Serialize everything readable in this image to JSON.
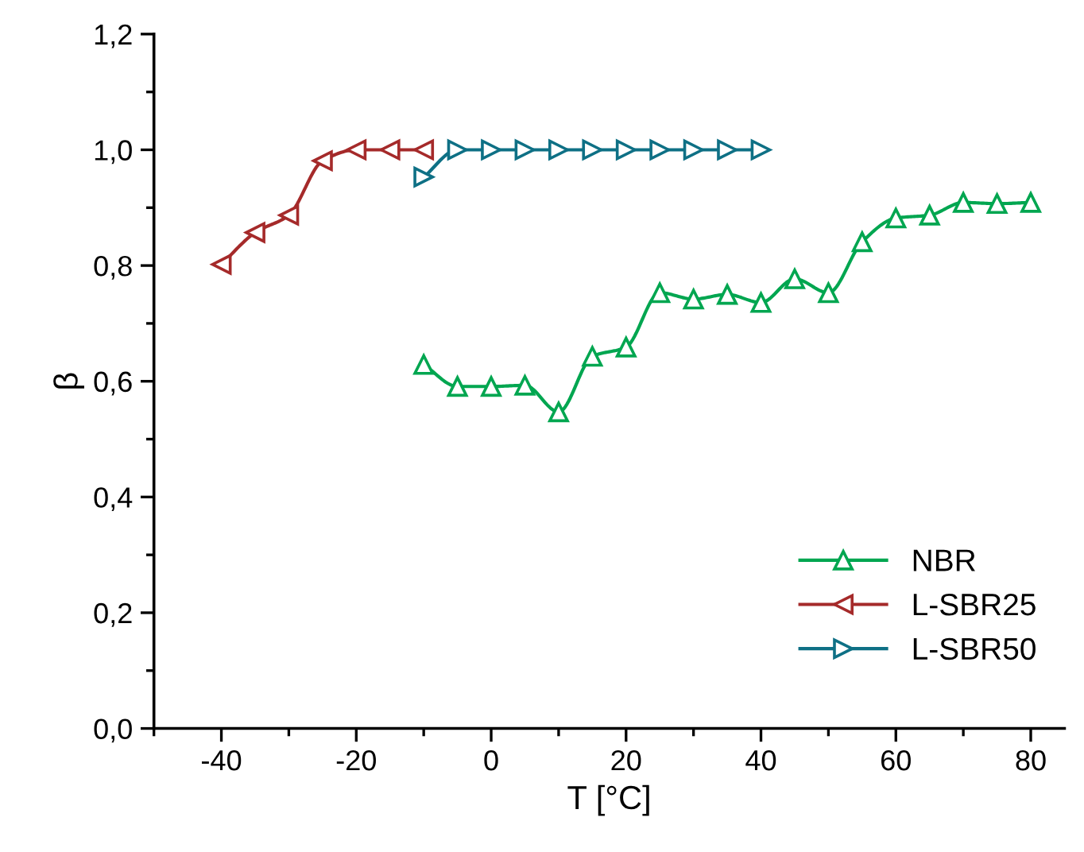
{
  "chart_data": {
    "type": "line",
    "xlabel": "T [°C]",
    "ylabel": "β",
    "marker": "triangle",
    "legend": "bottom right",
    "grid": false,
    "xlim": [
      -50,
      85
    ],
    "xticks": [
      -40,
      -20,
      0,
      20,
      40,
      60,
      80
    ],
    "ylim": [
      0,
      1.2
    ],
    "yticks": [
      {
        "value": 0,
        "label": "0,0"
      },
      {
        "value": 0.2,
        "label": "0,2"
      },
      {
        "value": 0.4,
        "label": "0,4"
      },
      {
        "value": 0.6,
        "label": "0,6"
      },
      {
        "value": 0.8,
        "label": "0,8"
      },
      {
        "value": 1.0,
        "label": "1,0"
      },
      {
        "value": 1.2,
        "label": "1,2"
      }
    ],
    "series": [
      {
        "name": "NBR",
        "color": "#00a650",
        "x": [
          -10,
          -5,
          0,
          5,
          10,
          15,
          20,
          25,
          30,
          35,
          40,
          45,
          50,
          55,
          60,
          65,
          70,
          75,
          80
        ],
        "values": [
          0.629,
          0.591,
          0.591,
          0.593,
          0.547,
          0.643,
          0.659,
          0.753,
          0.742,
          0.75,
          0.736,
          0.777,
          0.753,
          0.841,
          0.882,
          0.887,
          0.909,
          0.907,
          0.909
        ]
      },
      {
        "name": "L-SBR25",
        "color": "#a52a2a",
        "x": [
          -40,
          -35,
          -30,
          -25,
          -20,
          -15,
          -10
        ],
        "values": [
          0.802,
          0.857,
          0.887,
          0.981,
          1.0,
          1.0,
          1.0
        ]
      },
      {
        "name": "L-SBR50",
        "color": "#0e7085",
        "x": [
          -10,
          -5,
          0,
          5,
          10,
          15,
          20,
          25,
          30,
          35,
          40
        ],
        "values": [
          0.953,
          1.0,
          1.0,
          1.0,
          1.0,
          1.0,
          1.0,
          1.0,
          1.0,
          1.0,
          1.0
        ]
      }
    ]
  }
}
